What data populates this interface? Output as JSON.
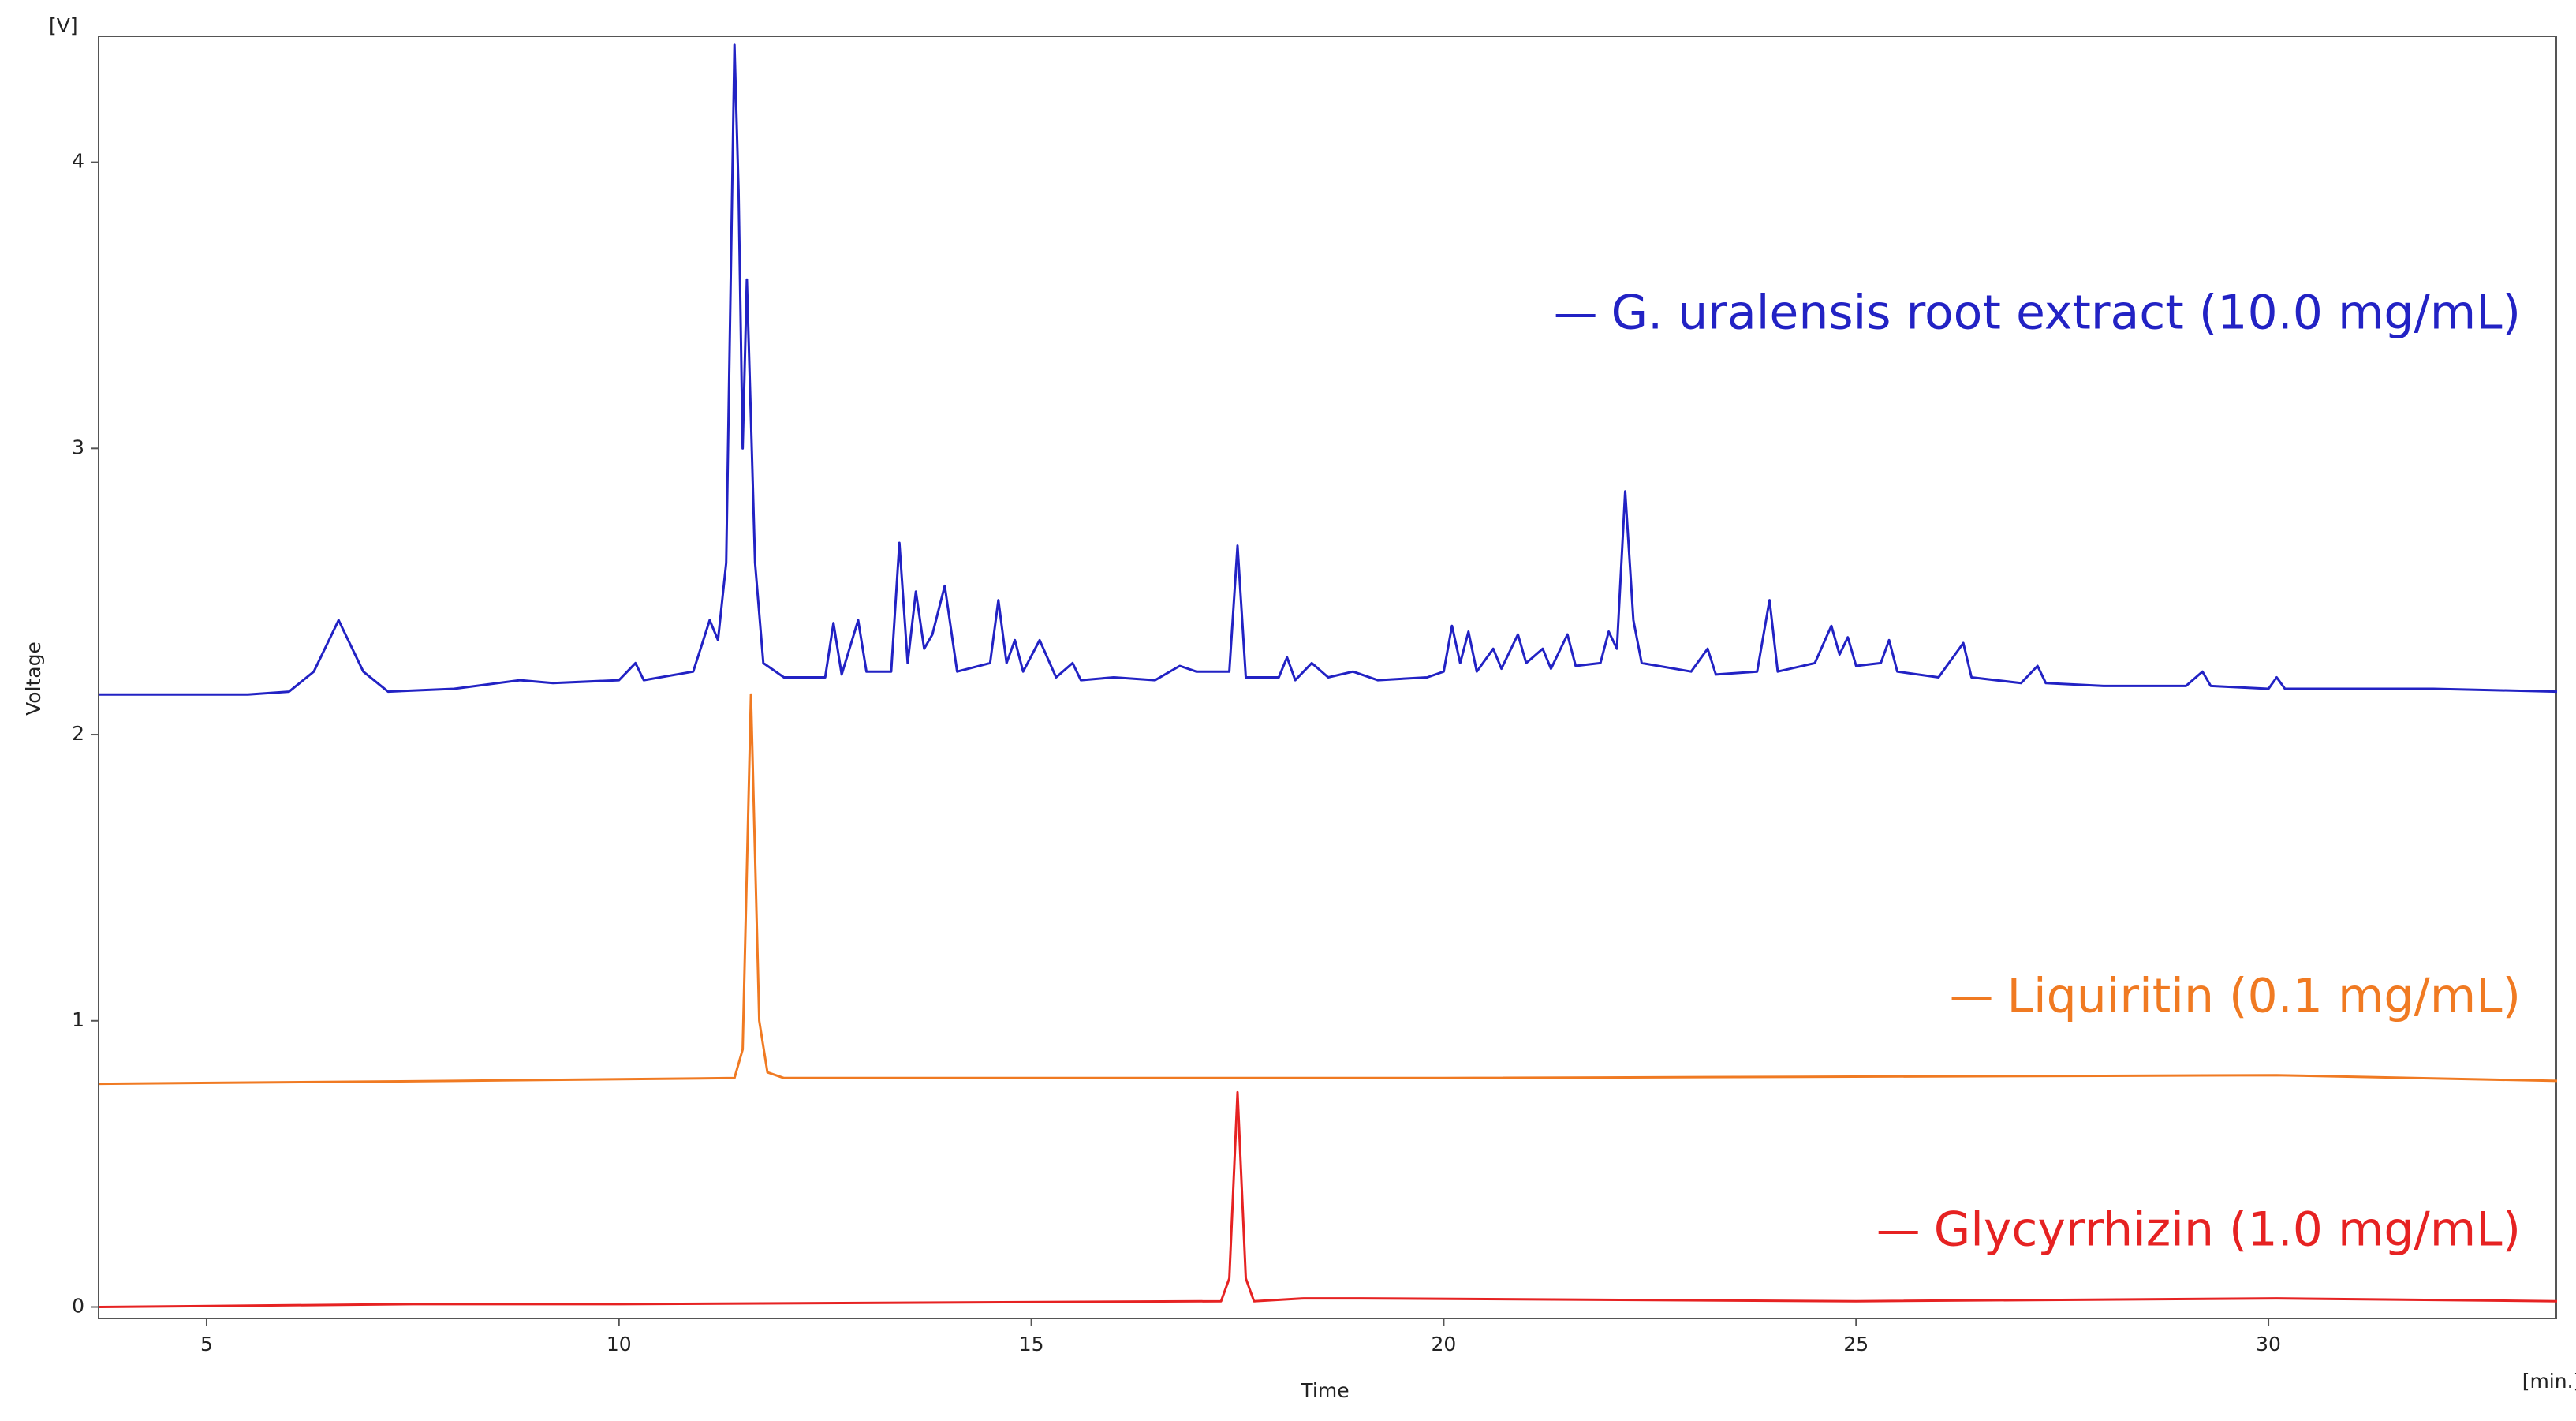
{
  "chart_data": {
    "type": "line",
    "x_label": "Time",
    "x_unit": "[min.]",
    "y_label": "Voltage",
    "y_unit": "[V]",
    "xlim": [
      3.69,
      33.49
    ],
    "xticks": [
      5,
      10,
      15,
      20,
      25,
      30
    ],
    "ylim": [
      -0.04,
      4.44
    ],
    "yticks": [
      0,
      1,
      2,
      3,
      4
    ],
    "grid": false,
    "series": [
      {
        "name": "G. uralensis root extract (10.0 mg/mL)",
        "color": "#2222c4",
        "x": [
          3.7,
          4.5,
          5.5,
          6.0,
          6.3,
          6.6,
          6.9,
          7.2,
          8,
          8.8,
          9.2,
          10.0,
          10.2,
          10.3,
          10.9,
          11.1,
          11.2,
          11.3,
          11.4,
          11.45,
          11.5,
          11.55,
          11.6,
          11.65,
          11.75,
          12.0,
          12.5,
          12.6,
          12.7,
          12.9,
          13.0,
          13.3,
          13.4,
          13.5,
          13.6,
          13.7,
          13.8,
          13.95,
          14.1,
          14.5,
          14.6,
          14.7,
          14.8,
          14.9,
          15.1,
          15.3,
          15.5,
          15.6,
          16,
          16.5,
          16.8,
          17.0,
          17.4,
          17.5,
          17.6,
          18.0,
          18.1,
          18.2,
          18.4,
          18.6,
          18.9,
          19.2,
          19.8,
          20.0,
          20.1,
          20.2,
          20.3,
          20.4,
          20.6,
          20.7,
          20.9,
          21.0,
          21.2,
          21.3,
          21.5,
          21.6,
          21.9,
          22.0,
          22.1,
          22.2,
          22.3,
          22.4,
          23.0,
          23.2,
          23.3,
          23.8,
          23.95,
          24.05,
          24.5,
          24.7,
          24.8,
          24.9,
          25.0,
          25.3,
          25.4,
          25.5,
          26.0,
          26.3,
          26.4,
          27.0,
          27.2,
          27.3,
          28,
          29,
          29.2,
          29.3,
          30,
          30.1,
          30.2,
          32,
          33.5
        ],
        "values": [
          2.14,
          2.14,
          2.14,
          2.15,
          2.22,
          2.4,
          2.22,
          2.15,
          2.16,
          2.19,
          2.18,
          2.19,
          2.25,
          2.19,
          2.22,
          2.4,
          2.33,
          2.6,
          4.41,
          3.9,
          3.0,
          3.59,
          3.1,
          2.6,
          2.25,
          2.2,
          2.2,
          2.39,
          2.21,
          2.4,
          2.22,
          2.22,
          2.67,
          2.25,
          2.5,
          2.3,
          2.35,
          2.52,
          2.22,
          2.25,
          2.47,
          2.25,
          2.33,
          2.22,
          2.33,
          2.2,
          2.25,
          2.19,
          2.2,
          2.19,
          2.24,
          2.22,
          2.22,
          2.66,
          2.2,
          2.2,
          2.27,
          2.19,
          2.25,
          2.2,
          2.22,
          2.19,
          2.2,
          2.22,
          2.38,
          2.25,
          2.36,
          2.22,
          2.3,
          2.23,
          2.35,
          2.25,
          2.3,
          2.23,
          2.35,
          2.24,
          2.25,
          2.36,
          2.3,
          2.85,
          2.4,
          2.25,
          2.22,
          2.3,
          2.21,
          2.22,
          2.47,
          2.22,
          2.25,
          2.38,
          2.28,
          2.34,
          2.24,
          2.25,
          2.33,
          2.22,
          2.2,
          2.32,
          2.2,
          2.18,
          2.24,
          2.18,
          2.17,
          2.17,
          2.22,
          2.17,
          2.16,
          2.2,
          2.16,
          2.16,
          2.15
        ]
      },
      {
        "name": "Liquiritin (0.1 mg/mL)",
        "color": "#f07a22",
        "x": [
          3.7,
          8,
          11.4,
          11.5,
          11.6,
          11.7,
          11.8,
          12,
          20,
          30.1,
          33.5
        ],
        "values": [
          0.78,
          0.79,
          0.8,
          0.9,
          2.14,
          1.0,
          0.82,
          0.8,
          0.8,
          0.81,
          0.79
        ]
      },
      {
        "name": "Glycyrrhizin (1.0 mg/mL)",
        "color": "#e62222",
        "x": [
          3.7,
          7.5,
          10,
          17.3,
          17.4,
          17.5,
          17.6,
          17.7,
          18.3,
          19,
          25,
          30.1,
          33.5
        ],
        "values": [
          0,
          0.01,
          0.01,
          0.02,
          0.1,
          0.75,
          0.1,
          0.02,
          0.03,
          0.03,
          0.02,
          0.03,
          0.02
        ]
      }
    ]
  }
}
